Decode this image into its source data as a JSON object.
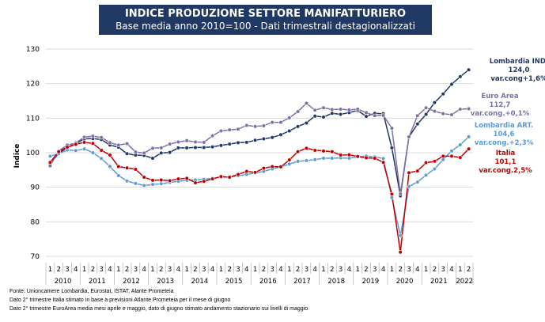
{
  "title": "INDICE PRODUZIONE SETTORE MANIFATTURIERO",
  "subtitle": "Base media anno 2010=100 - Dati trimestrali destagionalizzati",
  "colors": {
    "title_bg": "#1f3864",
    "lombardia_ind": "#1f3864",
    "euro_area": "#7f6fa5",
    "lombardia_art": "#5b9bd5",
    "italia": "#c00000"
  },
  "chart_data": {
    "type": "line",
    "ylabel": "Indice",
    "ylim": [
      70,
      130
    ],
    "yticks": [
      70,
      80,
      90,
      100,
      110,
      120,
      130
    ],
    "grid": true,
    "x_quarters": [
      "1",
      "2",
      "3",
      "4",
      "1",
      "2",
      "3",
      "4",
      "1",
      "2",
      "3",
      "4",
      "1",
      "2",
      "3",
      "4",
      "1",
      "2",
      "3",
      "4",
      "1",
      "2",
      "3",
      "4",
      "1",
      "2",
      "3",
      "4",
      "1",
      "2",
      "3",
      "4",
      "1",
      "2",
      "3",
      "4",
      "1",
      "2",
      "3",
      "4",
      "1",
      "2",
      "3",
      "4",
      "1",
      "2",
      "3",
      "4",
      "1",
      "2"
    ],
    "x_years": [
      "2010",
      "2011",
      "2012",
      "2013",
      "2014",
      "2015",
      "2016",
      "2017",
      "2018",
      "2019",
      "2020",
      "2021",
      "2022"
    ],
    "series": [
      {
        "name": "Lombardia IND.",
        "label_lines": [
          "Lombardia IND.",
          "124,0",
          "var.cong+1,6%"
        ],
        "color": "#1f3864",
        "values": [
          96.8,
          99.8,
          101.5,
          102.6,
          104.0,
          104.1,
          103.8,
          102.2,
          101.6,
          99.7,
          99.3,
          99.2,
          98.4,
          99.9,
          100.1,
          101.4,
          101.4,
          101.5,
          101.5,
          101.7,
          102.1,
          102.5,
          102.9,
          103.0,
          103.6,
          104.0,
          104.4,
          105.2,
          106.3,
          107.6,
          108.6,
          110.6,
          110.3,
          111.4,
          111.1,
          111.6,
          112.2,
          110.5,
          111.4,
          111.3,
          101.4,
          87.5,
          104.6,
          108.3,
          111.1,
          114.5,
          117.0,
          119.8,
          122.0,
          124.0
        ]
      },
      {
        "name": "Euro Area",
        "label_lines": [
          "Euro Area",
          "112,7",
          "var.cong.+0,1%"
        ],
        "color": "#7f6fa5",
        "values": [
          96.2,
          100.5,
          102.2,
          102.8,
          104.5,
          104.8,
          104.4,
          102.9,
          102.2,
          102.6,
          100.2,
          99.9,
          101.3,
          101.4,
          102.5,
          103.1,
          103.5,
          103.1,
          103.0,
          104.9,
          106.3,
          106.6,
          106.8,
          107.9,
          107.6,
          107.8,
          108.8,
          108.8,
          110.1,
          111.9,
          114.3,
          112.3,
          113.0,
          112.5,
          112.6,
          112.4,
          112.6,
          111.6,
          110.7,
          110.8,
          107.1,
          88.1,
          104.6,
          110.7,
          113.0,
          112.0,
          111.3,
          111.0,
          112.6,
          112.7
        ]
      },
      {
        "name": "Lombardia ART.",
        "label_lines": [
          "Lombardia ART.",
          "104,6",
          "var.cong.+2,3%"
        ],
        "color": "#5b9bd5",
        "values": [
          99.0,
          99.7,
          100.8,
          100.6,
          101.1,
          100.0,
          98.3,
          96.0,
          93.4,
          91.8,
          91.1,
          90.5,
          90.8,
          91.0,
          91.4,
          91.7,
          92.0,
          92.1,
          92.3,
          92.6,
          92.9,
          93.0,
          93.3,
          93.7,
          94.1,
          94.6,
          95.3,
          95.9,
          96.7,
          97.5,
          97.7,
          98.0,
          98.4,
          98.4,
          98.5,
          98.4,
          98.8,
          99.0,
          98.8,
          98.3,
          87.0,
          76.0,
          90.2,
          91.5,
          93.5,
          95.3,
          98.0,
          100.5,
          102.3,
          104.6
        ]
      },
      {
        "name": "Italia",
        "label_lines": [
          "Italia",
          "101,1",
          "var.cong.2,5%"
        ],
        "color": "#c00000",
        "values": [
          97.2,
          100.3,
          101.6,
          102.4,
          103.0,
          102.7,
          100.7,
          99.3,
          96.0,
          95.6,
          95.2,
          92.9,
          92.0,
          92.1,
          91.9,
          92.4,
          92.6,
          91.3,
          91.7,
          92.4,
          93.1,
          92.9,
          93.7,
          94.6,
          94.3,
          95.5,
          96.0,
          95.9,
          97.9,
          100.3,
          101.3,
          100.7,
          100.5,
          100.3,
          99.3,
          99.4,
          98.9,
          98.5,
          98.4,
          97.2,
          88.0,
          71.2,
          94.2,
          94.7,
          97.1,
          97.5,
          99.0,
          99.0,
          98.6,
          101.1
        ]
      }
    ]
  },
  "footnotes": [
    "Fonte: Unioncamere Lombardia, Eurostat, ISTAT, Alante Prometeia",
    "Dato 2° trimestre Italia stimato in base a previsioni Atlante Prometeia per il mese di giugno",
    "Dato 2° trimestre EuroArea media mesi aprile e maggio, dato di giugno stimato andamento stazionario sui livelli di maggio"
  ]
}
